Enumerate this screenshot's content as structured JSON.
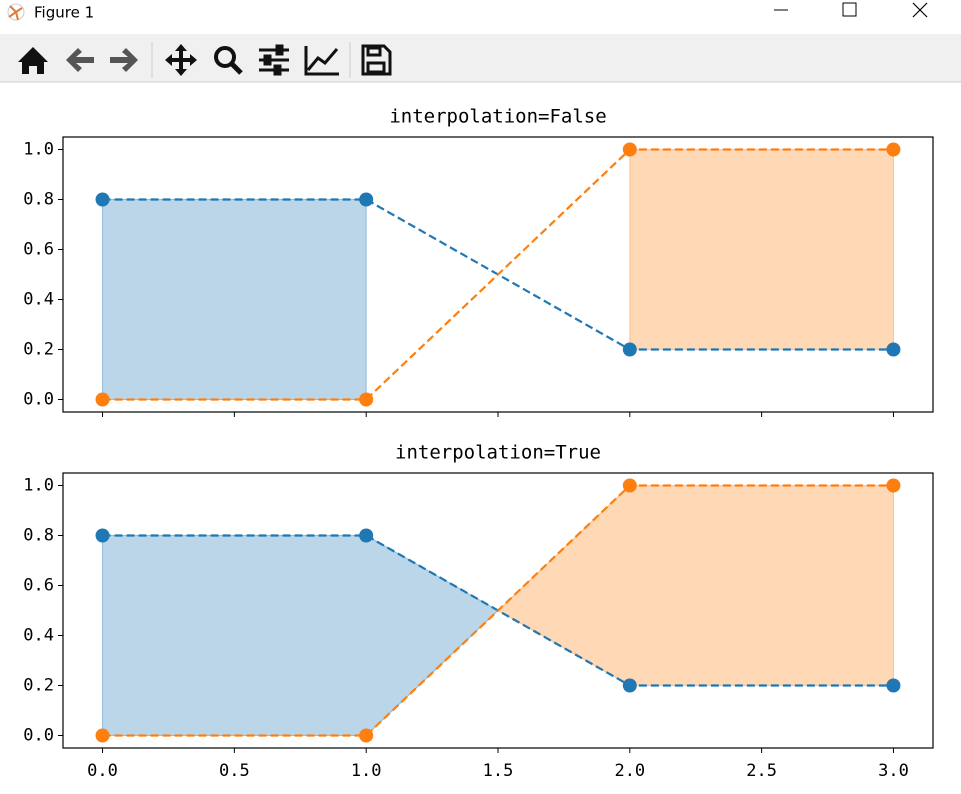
{
  "window": {
    "title": "Figure 1"
  },
  "chart_data": [
    {
      "type": "line",
      "title": "interpolation=False",
      "fill_between": true,
      "interpolate": false,
      "x": [
        0,
        1,
        2,
        3
      ],
      "series": [
        {
          "color": "#1f77b4",
          "values": [
            0.8,
            0.8,
            0.2,
            0.2
          ]
        },
        {
          "color": "#ff7f0e",
          "values": [
            0,
            0,
            1,
            1
          ]
        }
      ],
      "xlim": [
        -0.15,
        3.15
      ],
      "ylim": [
        -0.05,
        1.05
      ],
      "xticks": [
        0,
        0.5,
        1,
        1.5,
        2,
        2.5,
        3
      ],
      "xtick_labels": false,
      "yticks": [
        {
          "value": 0,
          "label": "0.0"
        },
        {
          "value": 0.2,
          "label": "0.2"
        },
        {
          "value": 0.4,
          "label": "0.4"
        },
        {
          "value": 0.6,
          "label": "0.6"
        },
        {
          "value": 0.8,
          "label": "0.8"
        },
        {
          "value": 1,
          "label": "1.0"
        }
      ]
    },
    {
      "type": "line",
      "title": "interpolation=True",
      "fill_between": true,
      "interpolate": true,
      "x": [
        0,
        1,
        2,
        3
      ],
      "series": [
        {
          "color": "#1f77b4",
          "values": [
            0.8,
            0.8,
            0.2,
            0.2
          ]
        },
        {
          "color": "#ff7f0e",
          "values": [
            0,
            0,
            1,
            1
          ]
        }
      ],
      "xlim": [
        -0.15,
        3.15
      ],
      "ylim": [
        -0.05,
        1.05
      ],
      "xticks": [
        {
          "value": 0,
          "label": "0.0"
        },
        {
          "value": 0.5,
          "label": "0.5"
        },
        {
          "value": 1,
          "label": "1.0"
        },
        {
          "value": 1.5,
          "label": "1.5"
        },
        {
          "value": 2,
          "label": "2.0"
        },
        {
          "value": 2.5,
          "label": "2.5"
        },
        {
          "value": 3,
          "label": "3.0"
        }
      ],
      "xtick_labels": true,
      "yticks": [
        {
          "value": 0,
          "label": "0.0"
        },
        {
          "value": 0.2,
          "label": "0.2"
        },
        {
          "value": 0.4,
          "label": "0.4"
        },
        {
          "value": 0.6,
          "label": "0.6"
        },
        {
          "value": 0.8,
          "label": "0.8"
        },
        {
          "value": 1,
          "label": "1.0"
        }
      ]
    }
  ]
}
